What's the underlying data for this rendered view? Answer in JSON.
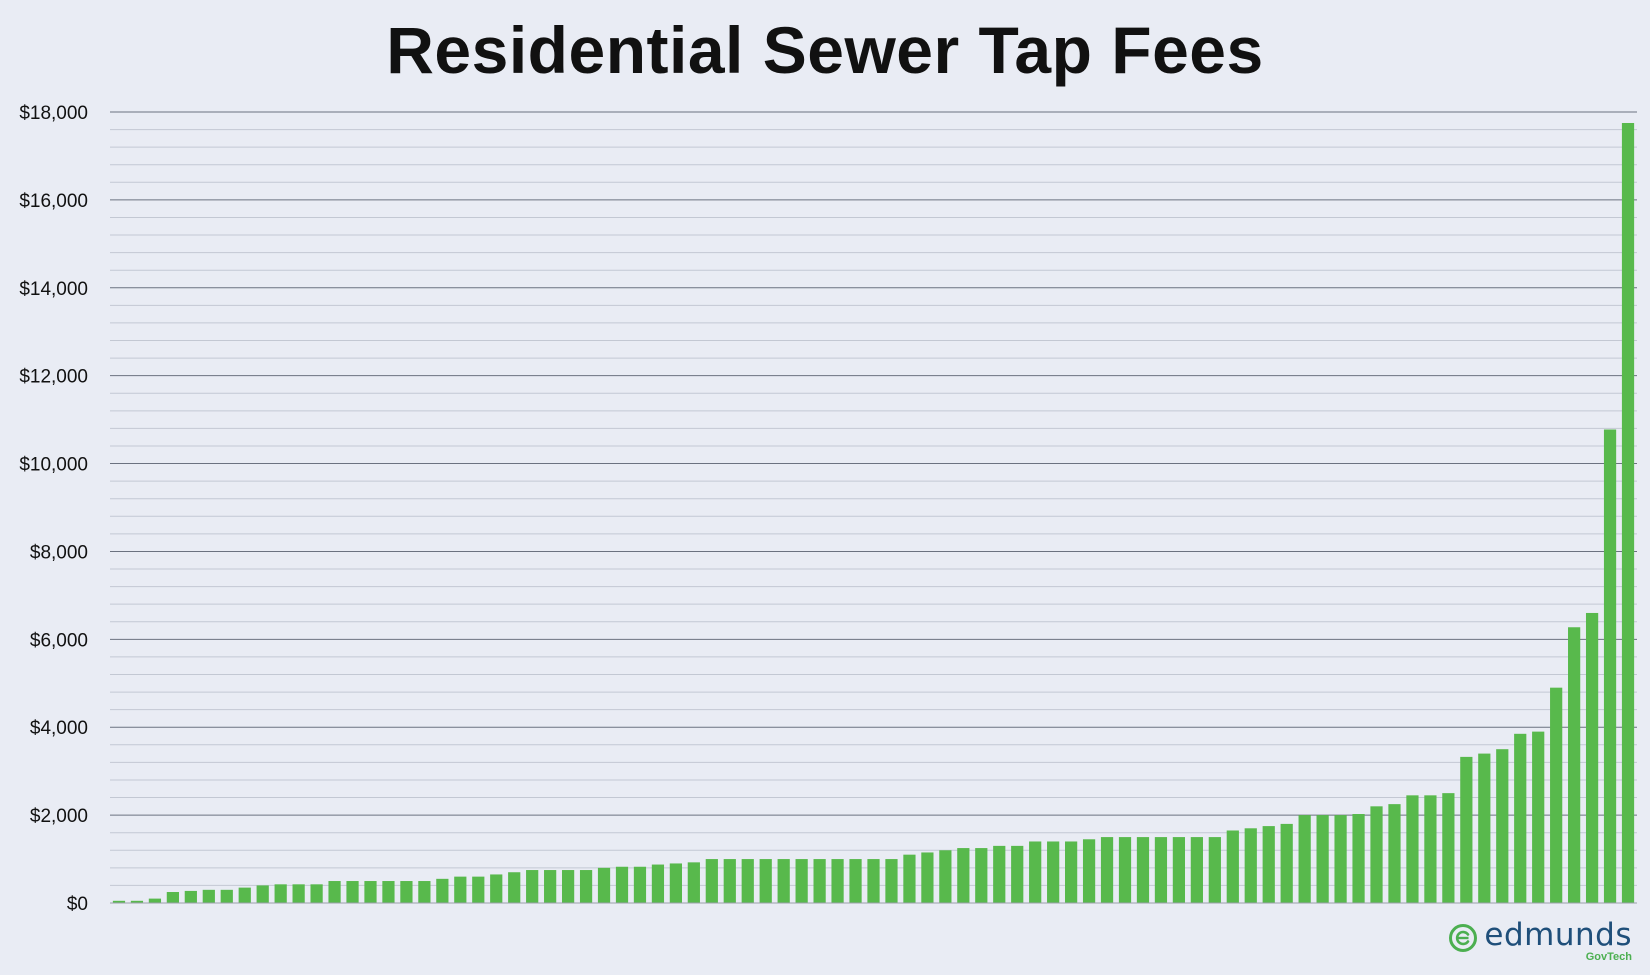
{
  "chart_data": {
    "type": "bar",
    "title": "Residential Sewer Tap Fees",
    "xlabel": "",
    "ylabel": "",
    "ylim": [
      0,
      18000
    ],
    "y_ticks": [
      0,
      2000,
      4000,
      6000,
      8000,
      10000,
      12000,
      14000,
      16000,
      18000
    ],
    "y_tick_labels": [
      "$0",
      "$2,000",
      "$4,000",
      "$6,000",
      "$8,000",
      "$10,000",
      "$12,000",
      "$14,000",
      "$16,000",
      "$18,000"
    ],
    "grid": true,
    "bar_color": "#58b94c",
    "values": [
      50,
      50,
      100,
      250,
      275,
      300,
      300,
      350,
      400,
      425,
      425,
      425,
      500,
      500,
      500,
      500,
      500,
      500,
      550,
      600,
      600,
      650,
      700,
      750,
      750,
      750,
      750,
      800,
      825,
      825,
      875,
      900,
      925,
      1000,
      1000,
      1000,
      1000,
      1000,
      1000,
      1000,
      1000,
      1000,
      1000,
      1000,
      1100,
      1150,
      1200,
      1250,
      1250,
      1300,
      1300,
      1400,
      1400,
      1400,
      1450,
      1500,
      1500,
      1500,
      1500,
      1500,
      1500,
      1500,
      1650,
      1700,
      1750,
      1800,
      2000,
      2000,
      2000,
      2025,
      2200,
      2250,
      2450,
      2450,
      2500,
      3325,
      3400,
      3500,
      3850,
      3900,
      4900,
      6275,
      6600,
      10775,
      17750
    ]
  },
  "logo": {
    "word": "edmunds",
    "sub": "GovTech",
    "icon": "edmunds-e-icon",
    "colors": {
      "word": "#1f4f7a",
      "accent": "#4caf50"
    }
  },
  "colors": {
    "background": "#e9ecf4",
    "major_grid": "#6b7280",
    "minor_grid": "#c3c8d3"
  }
}
